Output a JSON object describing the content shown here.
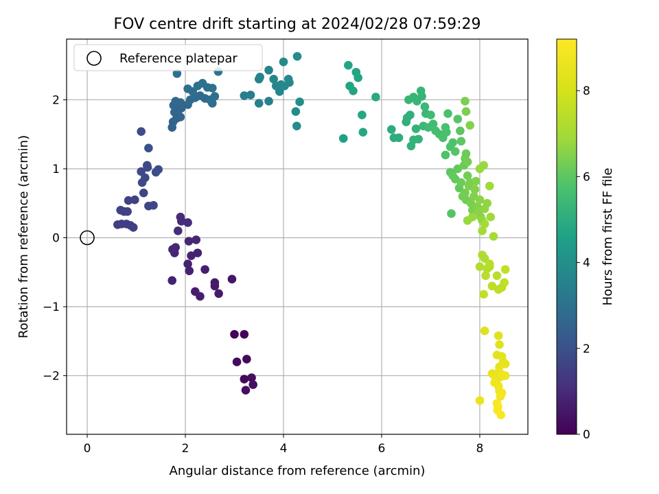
{
  "chart_data": {
    "type": "scatter",
    "title": "FOV centre drift starting at 2024/02/28 07:59:29",
    "xlabel": "Angular distance from reference (arcmin)",
    "ylabel": "Rotation from reference (arcmin)",
    "xlim": [
      -0.42,
      8.98
    ],
    "ylim": [
      -2.85,
      2.88
    ],
    "xticks": [
      0,
      2,
      4,
      6,
      8
    ],
    "yticks": [
      -2,
      -1,
      0,
      1,
      2
    ],
    "grid": true,
    "legend": {
      "position": "top-left",
      "entries": [
        "Reference platepar"
      ]
    },
    "reference_point": {
      "x": 0,
      "y": 0
    },
    "colorbar": {
      "label": "Hours from first FF file",
      "min": 0,
      "max": 9.2,
      "ticks": [
        0,
        2,
        4,
        6,
        8
      ],
      "colormap": "viridis"
    },
    "points": [
      {
        "x": 3.0,
        "y": -1.4,
        "c": 0.1
      },
      {
        "x": 3.2,
        "y": -1.4,
        "c": 0.1
      },
      {
        "x": 3.05,
        "y": -1.8,
        "c": 0.2
      },
      {
        "x": 3.25,
        "y": -1.76,
        "c": 0.2
      },
      {
        "x": 3.2,
        "y": -2.05,
        "c": 0.2
      },
      {
        "x": 3.35,
        "y": -2.03,
        "c": 0.3
      },
      {
        "x": 3.38,
        "y": -2.13,
        "c": 0.3
      },
      {
        "x": 3.23,
        "y": -2.21,
        "c": 0.3
      },
      {
        "x": 2.95,
        "y": -0.6,
        "c": 0.5
      },
      {
        "x": 2.6,
        "y": -0.65,
        "c": 0.6
      },
      {
        "x": 2.6,
        "y": -0.7,
        "c": 0.6
      },
      {
        "x": 2.68,
        "y": -0.81,
        "c": 0.6
      },
      {
        "x": 2.2,
        "y": -0.78,
        "c": 0.7
      },
      {
        "x": 2.3,
        "y": -0.85,
        "c": 0.7
      },
      {
        "x": 2.4,
        "y": -0.46,
        "c": 0.7
      },
      {
        "x": 2.05,
        "y": -0.38,
        "c": 0.8
      },
      {
        "x": 2.08,
        "y": -0.48,
        "c": 0.8
      },
      {
        "x": 2.12,
        "y": -0.26,
        "c": 0.8
      },
      {
        "x": 2.25,
        "y": -0.22,
        "c": 0.8
      },
      {
        "x": 2.22,
        "y": -0.03,
        "c": 0.9
      },
      {
        "x": 2.07,
        "y": -0.05,
        "c": 0.9
      },
      {
        "x": 1.74,
        "y": -0.17,
        "c": 0.9
      },
      {
        "x": 1.8,
        "y": -0.14,
        "c": 0.9
      },
      {
        "x": 1.78,
        "y": -0.22,
        "c": 0.9
      },
      {
        "x": 1.73,
        "y": -0.62,
        "c": 0.8
      },
      {
        "x": 1.85,
        "y": 0.1,
        "c": 1.0
      },
      {
        "x": 1.9,
        "y": 0.3,
        "c": 1.0
      },
      {
        "x": 1.92,
        "y": 0.24,
        "c": 1.0
      },
      {
        "x": 2.05,
        "y": 0.22,
        "c": 1.0
      },
      {
        "x": 0.62,
        "y": 0.19,
        "c": 1.5
      },
      {
        "x": 0.7,
        "y": 0.2,
        "c": 1.5
      },
      {
        "x": 0.8,
        "y": 0.2,
        "c": 1.5
      },
      {
        "x": 0.88,
        "y": 0.18,
        "c": 1.5
      },
      {
        "x": 0.94,
        "y": 0.15,
        "c": 1.5
      },
      {
        "x": 0.68,
        "y": 0.4,
        "c": 1.6
      },
      {
        "x": 0.75,
        "y": 0.38,
        "c": 1.6
      },
      {
        "x": 0.82,
        "y": 0.38,
        "c": 1.6
      },
      {
        "x": 0.84,
        "y": 0.54,
        "c": 1.6
      },
      {
        "x": 0.97,
        "y": 0.55,
        "c": 1.6
      },
      {
        "x": 1.15,
        "y": 0.65,
        "c": 1.7
      },
      {
        "x": 1.25,
        "y": 0.46,
        "c": 1.7
      },
      {
        "x": 1.35,
        "y": 0.47,
        "c": 1.7
      },
      {
        "x": 1.12,
        "y": 0.8,
        "c": 1.8
      },
      {
        "x": 1.18,
        "y": 0.87,
        "c": 1.8
      },
      {
        "x": 1.1,
        "y": 0.96,
        "c": 1.8
      },
      {
        "x": 1.22,
        "y": 1.05,
        "c": 1.8
      },
      {
        "x": 1.23,
        "y": 1.02,
        "c": 1.8
      },
      {
        "x": 1.4,
        "y": 0.95,
        "c": 1.9
      },
      {
        "x": 1.45,
        "y": 0.99,
        "c": 1.9
      },
      {
        "x": 1.1,
        "y": 1.54,
        "c": 1.9
      },
      {
        "x": 1.25,
        "y": 1.3,
        "c": 2.0
      },
      {
        "x": 1.73,
        "y": 1.6,
        "c": 2.5
      },
      {
        "x": 1.75,
        "y": 1.68,
        "c": 2.5
      },
      {
        "x": 1.82,
        "y": 1.73,
        "c": 2.6
      },
      {
        "x": 1.9,
        "y": 1.75,
        "c": 2.6
      },
      {
        "x": 1.78,
        "y": 1.82,
        "c": 2.6
      },
      {
        "x": 1.86,
        "y": 1.85,
        "c": 2.6
      },
      {
        "x": 1.92,
        "y": 1.88,
        "c": 2.6
      },
      {
        "x": 1.76,
        "y": 1.92,
        "c": 2.7
      },
      {
        "x": 1.8,
        "y": 1.98,
        "c": 2.7
      },
      {
        "x": 1.9,
        "y": 1.96,
        "c": 2.7
      },
      {
        "x": 2.05,
        "y": 1.93,
        "c": 2.7
      },
      {
        "x": 2.1,
        "y": 2.0,
        "c": 2.8
      },
      {
        "x": 2.2,
        "y": 2.03,
        "c": 2.8
      },
      {
        "x": 2.3,
        "y": 2.06,
        "c": 2.8
      },
      {
        "x": 2.4,
        "y": 2.02,
        "c": 2.8
      },
      {
        "x": 2.5,
        "y": 2.0,
        "c": 2.9
      },
      {
        "x": 2.55,
        "y": 1.95,
        "c": 2.9
      },
      {
        "x": 2.6,
        "y": 2.05,
        "c": 2.9
      },
      {
        "x": 2.15,
        "y": 2.12,
        "c": 2.9
      },
      {
        "x": 2.05,
        "y": 2.16,
        "c": 2.9
      },
      {
        "x": 2.25,
        "y": 2.2,
        "c": 3.0
      },
      {
        "x": 2.35,
        "y": 2.24,
        "c": 3.0
      },
      {
        "x": 2.45,
        "y": 2.18,
        "c": 3.0
      },
      {
        "x": 2.55,
        "y": 2.17,
        "c": 3.0
      },
      {
        "x": 1.83,
        "y": 2.38,
        "c": 3.0
      },
      {
        "x": 2.67,
        "y": 2.41,
        "c": 3.1
      },
      {
        "x": 3.2,
        "y": 2.06,
        "c": 3.4
      },
      {
        "x": 3.33,
        "y": 2.07,
        "c": 3.4
      },
      {
        "x": 3.5,
        "y": 1.95,
        "c": 3.5
      },
      {
        "x": 3.7,
        "y": 1.98,
        "c": 3.5
      },
      {
        "x": 3.5,
        "y": 2.3,
        "c": 3.6
      },
      {
        "x": 3.52,
        "y": 2.33,
        "c": 3.6
      },
      {
        "x": 3.7,
        "y": 2.43,
        "c": 3.6
      },
      {
        "x": 3.8,
        "y": 2.3,
        "c": 3.7
      },
      {
        "x": 3.85,
        "y": 2.2,
        "c": 3.7
      },
      {
        "x": 3.92,
        "y": 2.12,
        "c": 3.7
      },
      {
        "x": 3.95,
        "y": 2.22,
        "c": 3.7
      },
      {
        "x": 4.02,
        "y": 2.2,
        "c": 3.8
      },
      {
        "x": 4.1,
        "y": 2.3,
        "c": 3.8
      },
      {
        "x": 4.12,
        "y": 2.25,
        "c": 3.8
      },
      {
        "x": 4.0,
        "y": 2.55,
        "c": 3.8
      },
      {
        "x": 4.28,
        "y": 2.63,
        "c": 3.9
      },
      {
        "x": 4.25,
        "y": 1.83,
        "c": 3.9
      },
      {
        "x": 4.33,
        "y": 1.97,
        "c": 3.9
      },
      {
        "x": 4.27,
        "y": 1.62,
        "c": 3.9
      },
      {
        "x": 5.22,
        "y": 1.44,
        "c": 4.6
      },
      {
        "x": 5.32,
        "y": 2.5,
        "c": 4.7
      },
      {
        "x": 5.35,
        "y": 2.2,
        "c": 4.7
      },
      {
        "x": 5.42,
        "y": 2.13,
        "c": 4.7
      },
      {
        "x": 5.48,
        "y": 2.4,
        "c": 4.7
      },
      {
        "x": 5.52,
        "y": 2.32,
        "c": 4.7
      },
      {
        "x": 5.6,
        "y": 1.78,
        "c": 4.8
      },
      {
        "x": 5.62,
        "y": 1.53,
        "c": 4.8
      },
      {
        "x": 5.88,
        "y": 2.04,
        "c": 4.9
      },
      {
        "x": 6.2,
        "y": 1.57,
        "c": 5.0
      },
      {
        "x": 6.25,
        "y": 1.45,
        "c": 5.0
      },
      {
        "x": 6.35,
        "y": 1.45,
        "c": 5.0
      },
      {
        "x": 6.5,
        "y": 1.68,
        "c": 5.1
      },
      {
        "x": 6.52,
        "y": 1.74,
        "c": 5.1
      },
      {
        "x": 6.58,
        "y": 1.78,
        "c": 5.1
      },
      {
        "x": 6.6,
        "y": 1.33,
        "c": 5.2
      },
      {
        "x": 6.65,
        "y": 1.42,
        "c": 5.2
      },
      {
        "x": 6.7,
        "y": 1.58,
        "c": 5.2
      },
      {
        "x": 6.75,
        "y": 1.43,
        "c": 5.2
      },
      {
        "x": 6.55,
        "y": 2.0,
        "c": 5.3
      },
      {
        "x": 6.65,
        "y": 2.04,
        "c": 5.3
      },
      {
        "x": 6.72,
        "y": 1.98,
        "c": 5.3
      },
      {
        "x": 6.8,
        "y": 2.13,
        "c": 5.3
      },
      {
        "x": 6.82,
        "y": 2.05,
        "c": 5.3
      },
      {
        "x": 6.88,
        "y": 1.9,
        "c": 5.4
      },
      {
        "x": 6.9,
        "y": 1.8,
        "c": 5.4
      },
      {
        "x": 6.85,
        "y": 1.62,
        "c": 5.4
      },
      {
        "x": 7.0,
        "y": 1.78,
        "c": 5.5
      },
      {
        "x": 6.95,
        "y": 1.6,
        "c": 5.5
      },
      {
        "x": 7.05,
        "y": 1.65,
        "c": 5.5
      },
      {
        "x": 7.1,
        "y": 1.55,
        "c": 5.6
      },
      {
        "x": 7.18,
        "y": 1.5,
        "c": 5.6
      },
      {
        "x": 7.25,
        "y": 1.45,
        "c": 5.7
      },
      {
        "x": 7.3,
        "y": 1.6,
        "c": 5.7
      },
      {
        "x": 7.32,
        "y": 1.53,
        "c": 5.7
      },
      {
        "x": 7.35,
        "y": 1.8,
        "c": 5.7
      },
      {
        "x": 7.3,
        "y": 1.2,
        "c": 5.8
      },
      {
        "x": 7.4,
        "y": 1.32,
        "c": 5.8
      },
      {
        "x": 7.45,
        "y": 1.38,
        "c": 5.8
      },
      {
        "x": 7.5,
        "y": 1.25,
        "c": 5.9
      },
      {
        "x": 7.55,
        "y": 1.72,
        "c": 5.9
      },
      {
        "x": 7.6,
        "y": 1.55,
        "c": 6.0
      },
      {
        "x": 7.62,
        "y": 1.4,
        "c": 6.0
      },
      {
        "x": 7.4,
        "y": 0.95,
        "c": 6.0
      },
      {
        "x": 7.45,
        "y": 0.9,
        "c": 6.1
      },
      {
        "x": 7.5,
        "y": 0.85,
        "c": 6.1
      },
      {
        "x": 7.55,
        "y": 1.0,
        "c": 6.1
      },
      {
        "x": 7.58,
        "y": 0.72,
        "c": 6.1
      },
      {
        "x": 7.62,
        "y": 0.8,
        "c": 6.2
      },
      {
        "x": 7.68,
        "y": 1.05,
        "c": 6.2
      },
      {
        "x": 7.7,
        "y": 1.15,
        "c": 6.2
      },
      {
        "x": 7.72,
        "y": 1.22,
        "c": 6.2
      },
      {
        "x": 7.75,
        "y": 1.1,
        "c": 6.3
      },
      {
        "x": 7.65,
        "y": 0.6,
        "c": 6.3
      },
      {
        "x": 7.7,
        "y": 0.65,
        "c": 6.3
      },
      {
        "x": 7.72,
        "y": 0.55,
        "c": 6.3
      },
      {
        "x": 7.75,
        "y": 0.9,
        "c": 6.3
      },
      {
        "x": 7.78,
        "y": 0.75,
        "c": 6.4
      },
      {
        "x": 7.8,
        "y": 0.8,
        "c": 6.4
      },
      {
        "x": 7.82,
        "y": 0.5,
        "c": 6.4
      },
      {
        "x": 7.85,
        "y": 0.4,
        "c": 6.4
      },
      {
        "x": 7.88,
        "y": 0.6,
        "c": 6.5
      },
      {
        "x": 7.9,
        "y": 0.7,
        "c": 6.5
      },
      {
        "x": 7.92,
        "y": 0.82,
        "c": 6.5
      },
      {
        "x": 7.95,
        "y": 0.45,
        "c": 6.5
      },
      {
        "x": 7.98,
        "y": 0.38,
        "c": 6.6
      },
      {
        "x": 8.0,
        "y": 0.55,
        "c": 6.6
      },
      {
        "x": 8.02,
        "y": 0.3,
        "c": 6.6
      },
      {
        "x": 8.05,
        "y": 0.25,
        "c": 6.7
      },
      {
        "x": 8.1,
        "y": 0.42,
        "c": 6.7
      },
      {
        "x": 8.15,
        "y": 0.5,
        "c": 6.7
      },
      {
        "x": 7.75,
        "y": 0.25,
        "c": 6.8
      },
      {
        "x": 7.85,
        "y": 0.3,
        "c": 6.8
      },
      {
        "x": 8.0,
        "y": 1.0,
        "c": 6.8
      },
      {
        "x": 8.08,
        "y": 1.05,
        "c": 6.8
      },
      {
        "x": 8.2,
        "y": 0.75,
        "c": 6.9
      },
      {
        "x": 8.22,
        "y": 0.3,
        "c": 6.9
      },
      {
        "x": 8.1,
        "y": 0.2,
        "c": 7.0
      },
      {
        "x": 8.05,
        "y": 0.1,
        "c": 7.0
      },
      {
        "x": 8.28,
        "y": 0.02,
        "c": 7.0
      },
      {
        "x": 7.42,
        "y": 0.35,
        "c": 5.9
      },
      {
        "x": 7.7,
        "y": 1.98,
        "c": 6.4
      },
      {
        "x": 7.72,
        "y": 1.83,
        "c": 6.4
      },
      {
        "x": 7.8,
        "y": 1.63,
        "c": 6.5
      },
      {
        "x": 8.05,
        "y": -0.25,
        "c": 7.2
      },
      {
        "x": 8.1,
        "y": -0.3,
        "c": 7.2
      },
      {
        "x": 8.15,
        "y": -0.45,
        "c": 7.3
      },
      {
        "x": 8.0,
        "y": -0.42,
        "c": 7.3
      },
      {
        "x": 8.2,
        "y": -0.42,
        "c": 7.3
      },
      {
        "x": 8.12,
        "y": -0.55,
        "c": 7.4
      },
      {
        "x": 8.2,
        "y": -0.38,
        "c": 7.4
      },
      {
        "x": 8.35,
        "y": -0.55,
        "c": 7.4
      },
      {
        "x": 8.25,
        "y": -0.7,
        "c": 7.5
      },
      {
        "x": 8.38,
        "y": -0.75,
        "c": 7.5
      },
      {
        "x": 8.45,
        "y": -0.72,
        "c": 7.5
      },
      {
        "x": 8.5,
        "y": -0.65,
        "c": 7.6
      },
      {
        "x": 8.52,
        "y": -0.46,
        "c": 7.6
      },
      {
        "x": 8.08,
        "y": -0.82,
        "c": 7.6
      },
      {
        "x": 8.1,
        "y": -1.35,
        "c": 8.2
      },
      {
        "x": 8.38,
        "y": -1.42,
        "c": 8.3
      },
      {
        "x": 8.4,
        "y": -1.55,
        "c": 8.3
      },
      {
        "x": 8.35,
        "y": -1.7,
        "c": 8.4
      },
      {
        "x": 8.45,
        "y": -1.72,
        "c": 8.4
      },
      {
        "x": 8.48,
        "y": -1.8,
        "c": 8.4
      },
      {
        "x": 8.52,
        "y": -1.83,
        "c": 8.5
      },
      {
        "x": 8.4,
        "y": -1.87,
        "c": 8.5
      },
      {
        "x": 8.25,
        "y": -1.97,
        "c": 8.5
      },
      {
        "x": 8.3,
        "y": -2.0,
        "c": 8.6
      },
      {
        "x": 8.35,
        "y": -2.05,
        "c": 8.6
      },
      {
        "x": 8.38,
        "y": -1.95,
        "c": 8.6
      },
      {
        "x": 8.42,
        "y": -2.02,
        "c": 8.6
      },
      {
        "x": 8.45,
        "y": -1.98,
        "c": 8.7
      },
      {
        "x": 8.5,
        "y": -2.0,
        "c": 8.7
      },
      {
        "x": 8.52,
        "y": -2.0,
        "c": 8.7
      },
      {
        "x": 8.3,
        "y": -2.1,
        "c": 8.8
      },
      {
        "x": 8.38,
        "y": -2.15,
        "c": 8.8
      },
      {
        "x": 8.4,
        "y": -2.22,
        "c": 8.8
      },
      {
        "x": 8.45,
        "y": -2.25,
        "c": 8.9
      },
      {
        "x": 8.42,
        "y": -2.3,
        "c": 8.9
      },
      {
        "x": 8.0,
        "y": -2.36,
        "c": 8.6
      },
      {
        "x": 8.35,
        "y": -2.4,
        "c": 9.0
      },
      {
        "x": 8.37,
        "y": -2.45,
        "c": 9.1
      },
      {
        "x": 8.36,
        "y": -2.5,
        "c": 9.1
      },
      {
        "x": 8.43,
        "y": -2.57,
        "c": 9.1
      }
    ]
  }
}
